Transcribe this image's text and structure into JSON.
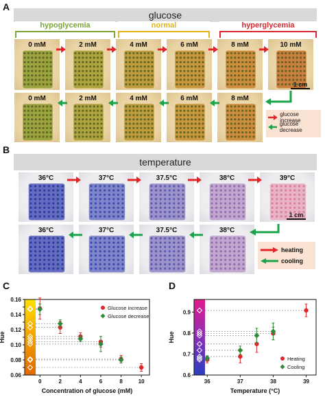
{
  "panel_a": {
    "letter": "A",
    "title": "glucose",
    "brackets": [
      {
        "label": "hypoglycemia",
        "color": "#7aa33a"
      },
      {
        "label": "normal",
        "color": "#e3b31c"
      },
      {
        "label": "hyperglycemia",
        "color": "#d7262f"
      }
    ],
    "row1_labels": [
      "0 mM",
      "2 mM",
      "4 mM",
      "6 mM",
      "8 mM",
      "10 mM"
    ],
    "row2_labels": [
      "0 mM",
      "2 mM",
      "4 mM",
      "6 mM",
      "8 mM"
    ],
    "scale": "1 cm",
    "legend": [
      {
        "label": "glucose increase",
        "color": "#e0262a"
      },
      {
        "label": "glucose decrease",
        "color": "#1aa34a"
      }
    ]
  },
  "panel_b": {
    "letter": "B",
    "title": "temperature",
    "row1_labels": [
      "36°C",
      "37°C",
      "37.5°C",
      "38°C",
      "39°C"
    ],
    "row2_labels": [
      "36°C",
      "37°C",
      "37.5°C",
      "38°C"
    ],
    "scale": "1 cm",
    "legend": [
      {
        "label": "heating",
        "color": "#e0262a"
      },
      {
        "label": "cooling",
        "color": "#1aa34a"
      }
    ]
  },
  "chart_data": [
    {
      "panel": "C",
      "type": "scatter",
      "xlabel": "Concentration of glucose (mM)",
      "ylabel": "Hue",
      "xlim": [
        -1.5,
        10.8
      ],
      "ylim": [
        0.06,
        0.16
      ],
      "xticks": [
        0,
        2,
        4,
        6,
        8,
        10
      ],
      "yticks": [
        0.06,
        0.07,
        0.08,
        0.09,
        0.1,
        0.11,
        0.12,
        0.13,
        0.14,
        0.15,
        0.16
      ],
      "ytick_labels": [
        "0.06",
        "",
        "0.08",
        "",
        "0.10",
        "",
        "0.12",
        "",
        "0.14",
        "",
        "0.16"
      ],
      "legend_position": "top-right",
      "series": [
        {
          "name": "Glucose increase",
          "color": "#e0262a",
          "marker": "circle",
          "x": [
            0,
            2,
            4,
            6,
            8,
            10
          ],
          "y": [
            0.148,
            0.123,
            0.111,
            0.104,
            0.081,
            0.07
          ],
          "err": [
            0.014,
            0.008,
            0.005,
            0.007,
            0.005,
            0.005
          ]
        },
        {
          "name": "Glucose decrease",
          "color": "#2e8b3a",
          "marker": "diamond",
          "x": [
            0,
            2,
            4,
            6,
            8
          ],
          "y": [
            0.147,
            0.128,
            0.108,
            0.101,
            0.08
          ],
          "err": [
            0.007,
            0.005,
            0.004,
            0.01,
            0.004
          ]
        }
      ]
    },
    {
      "panel": "D",
      "type": "scatter",
      "xlabel": "Temperature (°C)",
      "ylabel": "Hue",
      "xlim": [
        35.6,
        39.3
      ],
      "ylim": [
        0.6,
        0.96
      ],
      "xticks": [
        36,
        37,
        38,
        39
      ],
      "yticks": [
        0.6,
        0.7,
        0.8,
        0.9
      ],
      "ytick_labels": [
        "0.6",
        "0.7",
        "0.8",
        "0.9"
      ],
      "legend_position": "bottom-right",
      "series": [
        {
          "name": "Heating",
          "color": "#e0262a",
          "marker": "circle",
          "x": [
            36,
            37,
            37.5,
            38,
            39
          ],
          "y": [
            0.673,
            0.688,
            0.748,
            0.798,
            0.908
          ],
          "err": [
            0.015,
            0.03,
            0.04,
            0.03,
            0.03
          ]
        },
        {
          "name": "Cooling",
          "color": "#2e8b3a",
          "marker": "diamond",
          "x": [
            36,
            37,
            37.5,
            38
          ],
          "y": [
            0.68,
            0.718,
            0.788,
            0.808
          ],
          "err": [
            0.012,
            0.02,
            0.035,
            0.04
          ]
        }
      ]
    }
  ]
}
